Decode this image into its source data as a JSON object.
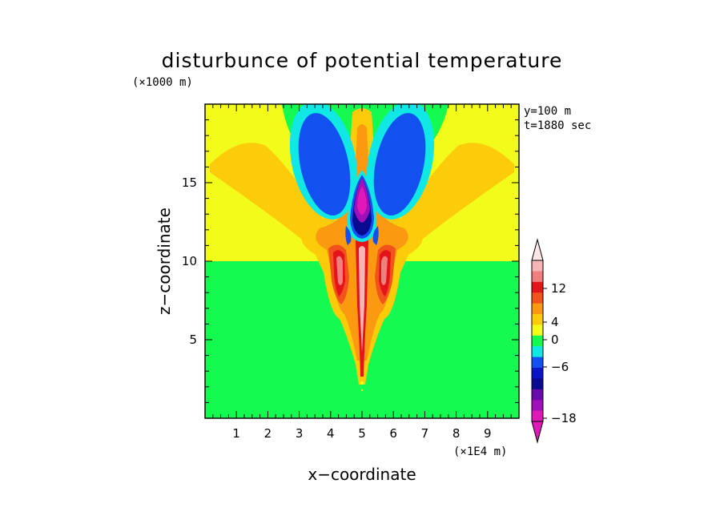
{
  "chart_data": {
    "type": "heatmap",
    "title": "disturbunce of potential temperature",
    "xlabel": "x−coordinate",
    "ylabel": "z−coordinate",
    "x_unit": "(×1E4 m)",
    "y_unit": "(×1000 m)",
    "annotations": [
      "y=100 m",
      "t=1880 sec"
    ],
    "xlim": [
      0,
      10
    ],
    "ylim": [
      0,
      20
    ],
    "x_ticks": [
      1,
      2,
      3,
      4,
      5,
      6,
      7,
      8,
      9
    ],
    "y_ticks": [
      5,
      10,
      15
    ],
    "grid": false,
    "colorbar": {
      "labeled_ticks": [
        {
          "value": 12,
          "label": "12"
        },
        {
          "value": 4,
          "label": "4"
        },
        {
          "value": 0,
          "label": "0"
        },
        {
          "value": -6,
          "label": "−6"
        },
        {
          "value": -18,
          "label": "−18"
        }
      ],
      "levels": [
        {
          "color": "#f7b6b6"
        },
        {
          "color": "#f08080"
        },
        {
          "color": "#e4141a"
        },
        {
          "color": "#f2521c"
        },
        {
          "color": "#fb9a10"
        },
        {
          "color": "#fccb0a"
        },
        {
          "color": "#f3fb1a"
        },
        {
          "color": "#14fa50"
        },
        {
          "color": "#10e8e6"
        },
        {
          "color": "#1250f0"
        },
        {
          "color": "#0a15c8"
        },
        {
          "color": "#0a0a90"
        },
        {
          "color": "#6a0aa8"
        },
        {
          "color": "#a010b8"
        },
        {
          "color": "#e018b8"
        }
      ]
    }
  }
}
